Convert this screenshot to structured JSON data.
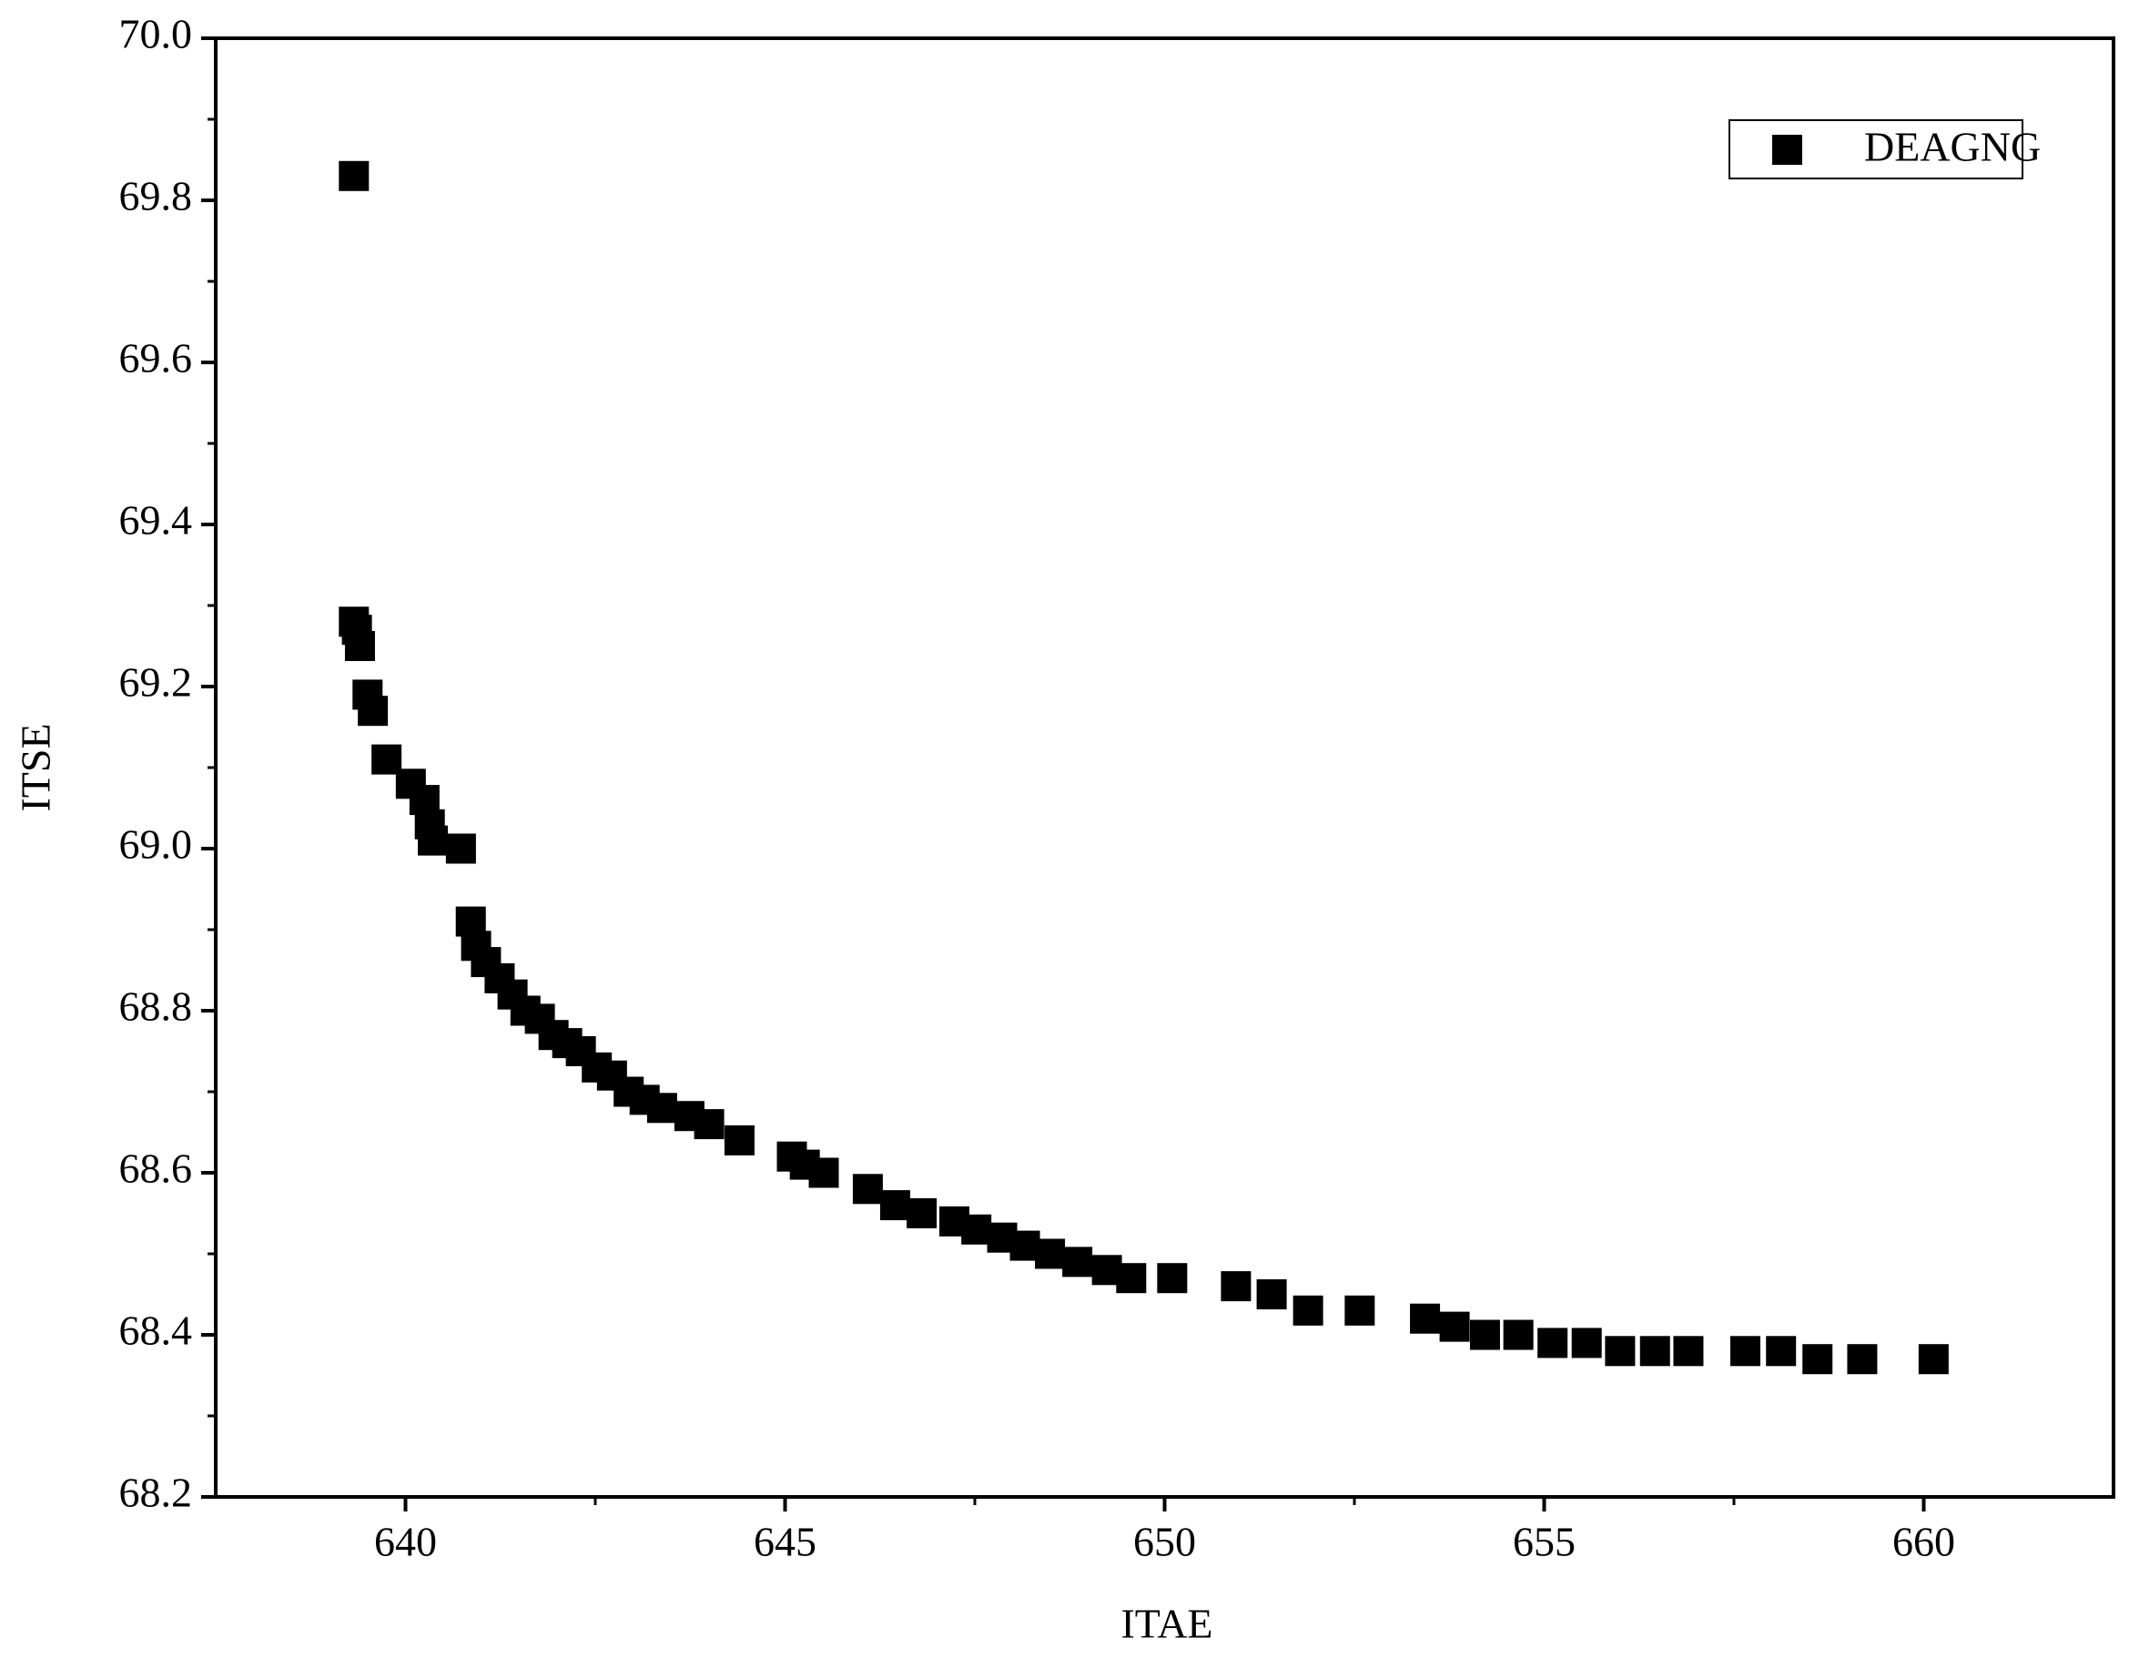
{
  "chart_data": {
    "type": "scatter",
    "x_label": "ITAE",
    "y_label": "ITSE",
    "xlim": [
      637.5,
      662.5
    ],
    "xticks": [
      640,
      645,
      650,
      655,
      660
    ],
    "ylim": [
      68.2,
      70.0
    ],
    "yticks": [
      68.2,
      68.4,
      68.6,
      68.8,
      {
        "value": 69,
        "label": "69.0"
      },
      69.2,
      69.4,
      69.6,
      69.8,
      {
        "value": 70,
        "label": "70.0"
      }
    ],
    "legend": "upper right",
    "series": [
      {
        "name": "DEAGNG",
        "color": "#000000",
        "x": [
          639.32,
          639.32,
          639.36,
          639.4,
          639.5,
          639.57,
          639.75,
          640.07,
          640.25,
          640.32,
          640.36,
          640.73,
          640.86,
          640.93,
          641.06,
          641.24,
          641.41,
          641.58,
          641.77,
          641.95,
          642.13,
          642.31,
          642.52,
          642.72,
          642.94,
          643.15,
          643.38,
          643.74,
          644.0,
          644.4,
          645.09,
          645.26,
          645.51,
          646.09,
          646.45,
          646.8,
          647.23,
          647.52,
          647.86,
          648.16,
          648.49,
          648.85,
          649.24,
          649.56,
          650.1,
          650.94,
          651.41,
          651.89,
          652.57,
          653.43,
          653.82,
          654.22,
          654.66,
          655.11,
          655.56,
          656.0,
          656.46,
          656.9,
          657.65,
          658.12,
          658.6,
          659.19,
          660.13
        ],
        "values": [
          69.83,
          69.28,
          69.27,
          69.25,
          69.19,
          69.17,
          69.11,
          69.08,
          69.06,
          69.03,
          69.01,
          69.0,
          68.91,
          68.88,
          68.86,
          68.84,
          68.82,
          68.8,
          68.79,
          68.77,
          68.76,
          68.75,
          68.73,
          68.72,
          68.7,
          68.69,
          68.68,
          68.67,
          68.66,
          68.64,
          68.62,
          68.61,
          68.6,
          68.58,
          68.56,
          68.55,
          68.54,
          68.53,
          68.52,
          68.51,
          68.5,
          68.49,
          68.48,
          68.47,
          68.47,
          68.46,
          68.45,
          68.43,
          68.43,
          68.42,
          68.41,
          68.4,
          68.4,
          68.39,
          68.39,
          68.38,
          68.38,
          68.38,
          68.38,
          68.38,
          68.37,
          68.37,
          68.37
        ]
      }
    ]
  }
}
